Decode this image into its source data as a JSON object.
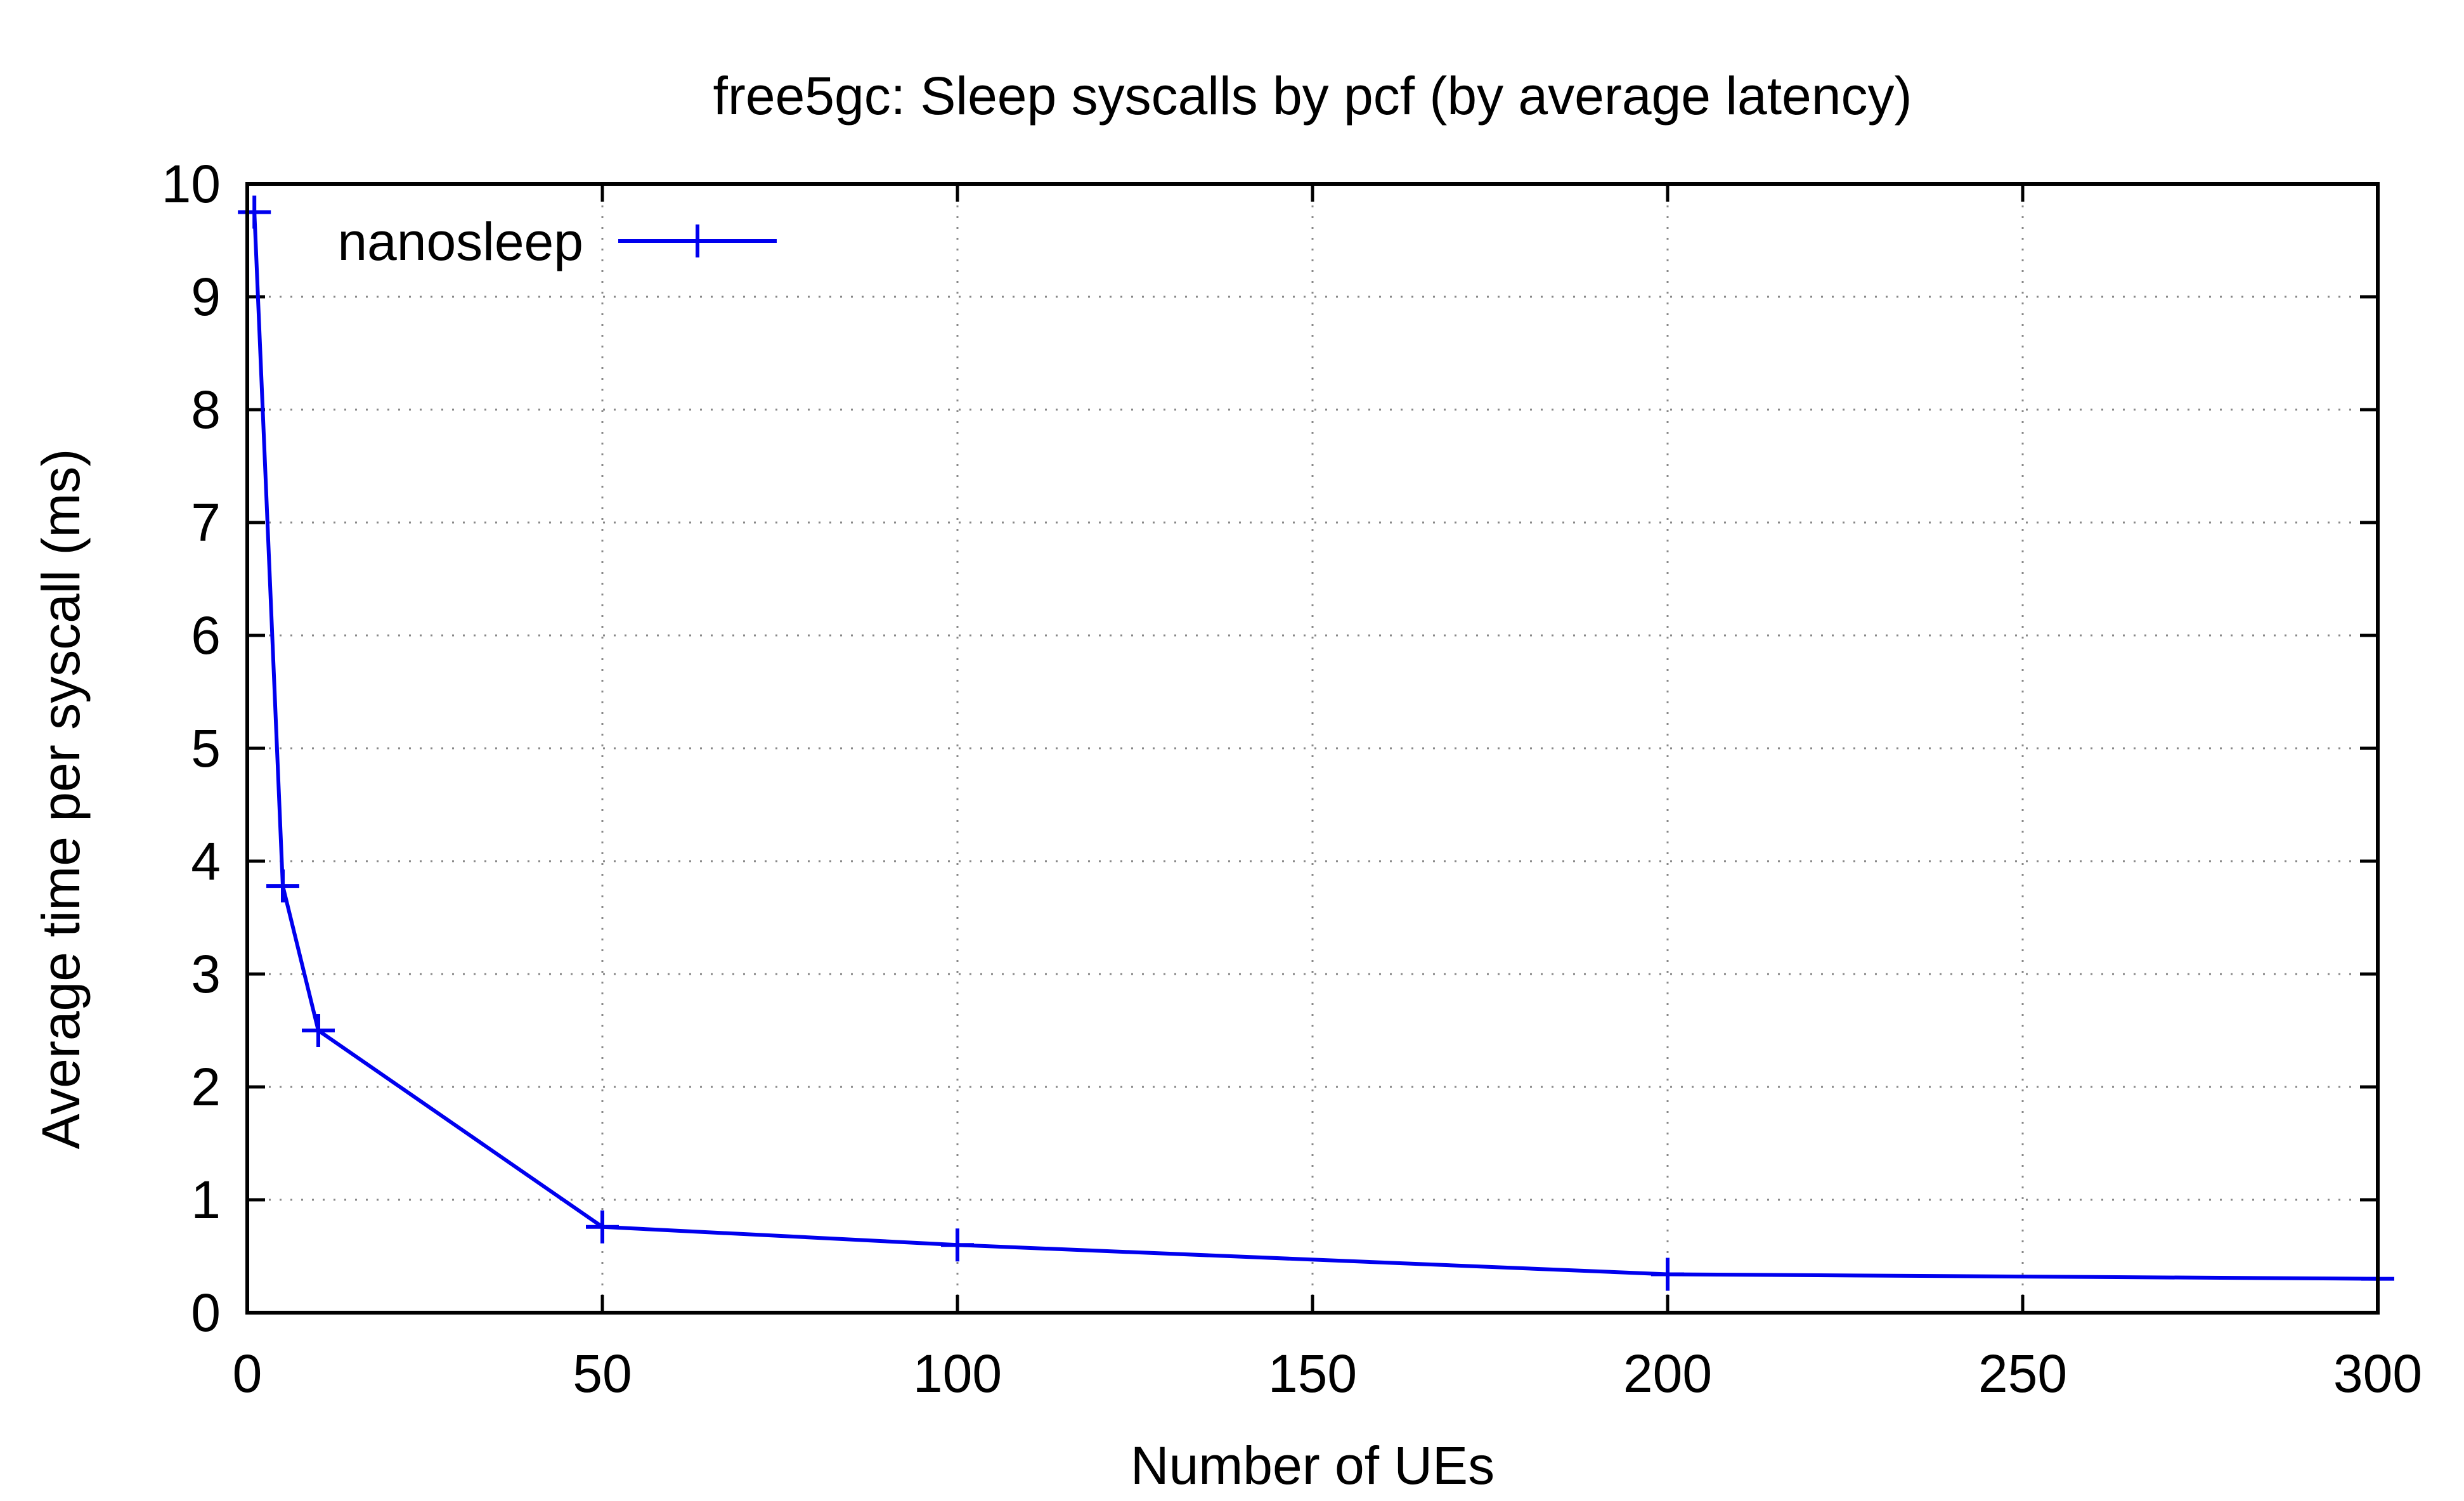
{
  "chart_data": {
    "type": "line",
    "title": "free5gc: Sleep syscalls by pcf (by average latency)",
    "xlabel": "Number of UEs",
    "ylabel": "Average time per syscall (ms)",
    "xlim": [
      0,
      300
    ],
    "ylim": [
      0,
      10
    ],
    "xticks": [
      0,
      50,
      100,
      150,
      200,
      250,
      300
    ],
    "yticks": [
      0,
      1,
      2,
      3,
      4,
      5,
      6,
      7,
      8,
      9,
      10
    ],
    "grid": true,
    "legend": "top-left",
    "series": [
      {
        "name": "nanosleep",
        "color": "#0000ee",
        "marker": "plus",
        "x": [
          1,
          5,
          10,
          50,
          100,
          200,
          300
        ],
        "y": [
          9.75,
          3.78,
          2.5,
          0.76,
          0.6,
          0.34,
          0.3
        ]
      }
    ]
  }
}
